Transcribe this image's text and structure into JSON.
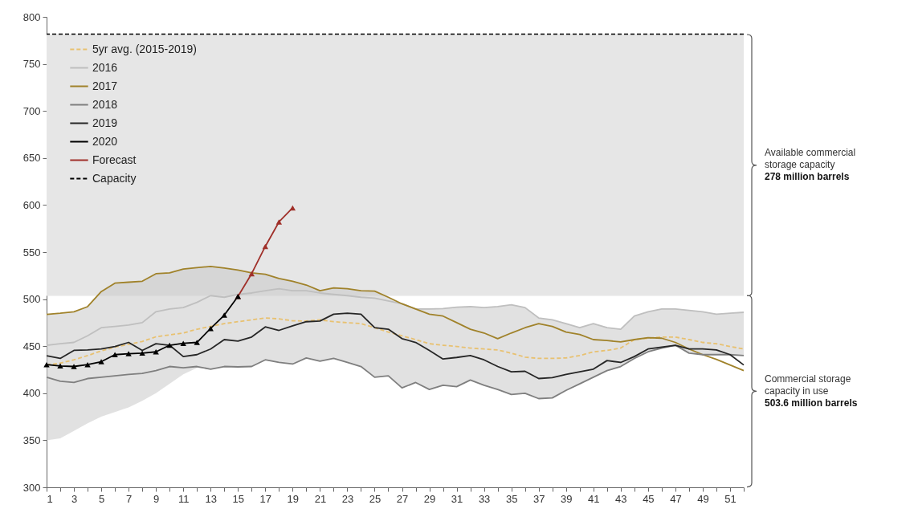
{
  "chart_data": {
    "type": "line",
    "x": [
      1,
      2,
      3,
      4,
      5,
      6,
      7,
      8,
      9,
      10,
      11,
      12,
      13,
      14,
      15,
      16,
      17,
      18,
      19,
      20,
      21,
      22,
      23,
      24,
      25,
      26,
      27,
      28,
      29,
      30,
      31,
      32,
      33,
      34,
      35,
      36,
      37,
      38,
      39,
      40,
      41,
      42,
      43,
      44,
      45,
      46,
      47,
      48,
      49,
      50,
      51,
      52
    ],
    "xlim": [
      1,
      52
    ],
    "xticks": [
      1,
      {
        "value": 2,
        "label": null
      },
      3,
      {
        "value": 4,
        "label": null
      },
      5,
      {
        "value": 6,
        "label": null
      },
      7,
      {
        "value": 8,
        "label": null
      },
      9,
      {
        "value": 10,
        "label": null
      },
      11,
      {
        "value": 12,
        "label": null
      },
      13,
      {
        "value": 14,
        "label": null
      },
      15,
      {
        "value": 16,
        "label": null
      },
      17,
      {
        "value": 18,
        "label": null
      },
      19,
      {
        "value": 20,
        "label": null
      },
      21,
      {
        "value": 22,
        "label": null
      },
      23,
      {
        "value": 24,
        "label": null
      },
      25,
      {
        "value": 26,
        "label": null
      },
      27,
      {
        "value": 28,
        "label": null
      },
      29,
      {
        "value": 30,
        "label": null
      },
      31,
      {
        "value": 32,
        "label": null
      },
      33,
      {
        "value": 34,
        "label": null
      },
      35,
      {
        "value": 36,
        "label": null
      },
      37,
      {
        "value": 38,
        "label": null
      },
      39,
      {
        "value": 40,
        "label": null
      },
      41,
      {
        "value": 42,
        "label": null
      },
      43,
      {
        "value": 44,
        "label": null
      },
      45,
      {
        "value": 46,
        "label": null
      },
      47,
      {
        "value": 48,
        "label": null
      },
      49,
      {
        "value": 50,
        "label": null
      },
      51,
      {
        "value": 52,
        "label": null
      }
    ],
    "ylim": [
      300,
      800
    ],
    "yticks": [
      300,
      350,
      400,
      450,
      500,
      550,
      600,
      650,
      700,
      750,
      800
    ],
    "grid": false,
    "legend": "top left",
    "series": [
      {
        "name": "5yr avg. (2015-2019)",
        "color": "#e8c170",
        "line_style": "dashed",
        "values": [
          430,
          432,
          435.5,
          440,
          445,
          449,
          452,
          455,
          460,
          462,
          464,
          468,
          471,
          474,
          476,
          478,
          480,
          479,
          477,
          476.7,
          478,
          476,
          475,
          474,
          469.6,
          465,
          461,
          457,
          452.6,
          451,
          449.7,
          448,
          447,
          446,
          442.6,
          438.4,
          437,
          437,
          437.5,
          440,
          444,
          445.5,
          448,
          457,
          458.5,
          459.7,
          459.7,
          457,
          454,
          452.6,
          449.7,
          447
        ],
        "lower": [
          350,
          352,
          360,
          368,
          375,
          380,
          385,
          392,
          400,
          410,
          420,
          427,
          425.6,
          428.4,
          428,
          428.4,
          435.5,
          432.7,
          431,
          437.5,
          434,
          437,
          432.7,
          428.4,
          417,
          418.5,
          405.7,
          411.4,
          404,
          408.5,
          407,
          414,
          408.5,
          404,
          398.6,
          400,
          394.3,
          395,
          403,
          410,
          417,
          424,
          428.4,
          437,
          444,
          448,
          451,
          442.6,
          441,
          441,
          441,
          440
        ],
        "upper": [
          483.8,
          485,
          486.6,
          492,
          508,
          517,
          518,
          519,
          527,
          528,
          532,
          533.5,
          534.7,
          533,
          531,
          528,
          526.4,
          522,
          519,
          515,
          509,
          512,
          511,
          509,
          508.5,
          502,
          495,
          489.5,
          489.5,
          490,
          491.5,
          492,
          491,
          492,
          494,
          491,
          480,
          478,
          474,
          469.6,
          474,
          469.6,
          468,
          482,
          486.6,
          489.5,
          489.5,
          488,
          486.6,
          484,
          485,
          486
        ]
      },
      {
        "name": "2016",
        "color": "#bfbfbf",
        "values": [
          451,
          452.6,
          454,
          461,
          469.6,
          471,
          472.4,
          475,
          486.6,
          489.5,
          491,
          496.6,
          503.7,
          502,
          505,
          506.5,
          509,
          511,
          509,
          509,
          506.5,
          505,
          503.7,
          502,
          501,
          498,
          495,
          489.5,
          489.5,
          490,
          491.5,
          492,
          491,
          492,
          494,
          491,
          480,
          478,
          474,
          469.6,
          474,
          469.6,
          468,
          482,
          486.6,
          489.5,
          489.5,
          488,
          486.6,
          484,
          485,
          486
        ]
      },
      {
        "name": "2017",
        "color": "#a0822a",
        "values": [
          483.8,
          485,
          486.6,
          492,
          508,
          517,
          518,
          519,
          527,
          528,
          532,
          533.5,
          534.7,
          533,
          531,
          528,
          526.4,
          522,
          519,
          515,
          509,
          512,
          511,
          509,
          508.5,
          502,
          495,
          489.5,
          484,
          482,
          475,
          468,
          464,
          458,
          464,
          469.6,
          474,
          471,
          465,
          462.5,
          457,
          456,
          454.5,
          457,
          459,
          458.5,
          454,
          447,
          441,
          436,
          430,
          424
        ]
      },
      {
        "name": "2018",
        "color": "#7f7f7f",
        "values": [
          417,
          412.8,
          411.4,
          415.6,
          417,
          418.5,
          420,
          421,
          424,
          428.4,
          427,
          428.4,
          425.6,
          428.4,
          428,
          428.4,
          435.5,
          432.7,
          431,
          437.5,
          434,
          437,
          432.7,
          428.4,
          417,
          418.5,
          405.7,
          411.4,
          404,
          408.5,
          407,
          414,
          408.5,
          404,
          398.6,
          400,
          394.3,
          395,
          403,
          410,
          417,
          424,
          428.4,
          437,
          444,
          448,
          451,
          442.6,
          441,
          441,
          441,
          440
        ]
      },
      {
        "name": "2019",
        "color": "#262626",
        "values": [
          439.8,
          437,
          445.5,
          446,
          447,
          449.7,
          454,
          445.5,
          452.6,
          451,
          439,
          441,
          447,
          457,
          455.4,
          459.7,
          470.5,
          466.8,
          471.6,
          476,
          476.7,
          484,
          485,
          484,
          469.6,
          468,
          458,
          454,
          445.5,
          436.4,
          438,
          440,
          435.5,
          428.4,
          422.7,
          423.3,
          415.6,
          416.5,
          420,
          422.7,
          425.6,
          434.7,
          432.7,
          439,
          447,
          449,
          451,
          447,
          447,
          446,
          441,
          430
        ]
      },
      {
        "name": "2020",
        "color": "#000000",
        "marker": "triangle",
        "x": [
          1,
          2,
          3,
          4,
          5,
          6,
          7,
          8,
          9,
          10,
          11,
          12,
          13,
          14,
          15
        ],
        "values": [
          430.4,
          429,
          428.4,
          430.4,
          433.5,
          441,
          442,
          442.6,
          444,
          451,
          453,
          454,
          468.8,
          483,
          502.8
        ]
      },
      {
        "name": "Forecast",
        "color": "#a0302a",
        "marker": "triangle",
        "x": [
          15,
          16,
          17,
          18,
          19
        ],
        "values": [
          502.8,
          527,
          556,
          582,
          597
        ]
      }
    ],
    "ref_lines": [
      {
        "axis": "y",
        "value": 781.6,
        "label": "Capacity",
        "color": "#000000",
        "line_style": "dashed"
      }
    ],
    "bands": [
      {
        "axis": "y",
        "from": 503.6,
        "to": 781.6,
        "color": "#e6e6e6"
      }
    ],
    "annotations": [
      "Available commercial storage capacity",
      "278 million barrels",
      "Commercial storage capacity in use",
      "503.6 million barrels"
    ]
  }
}
